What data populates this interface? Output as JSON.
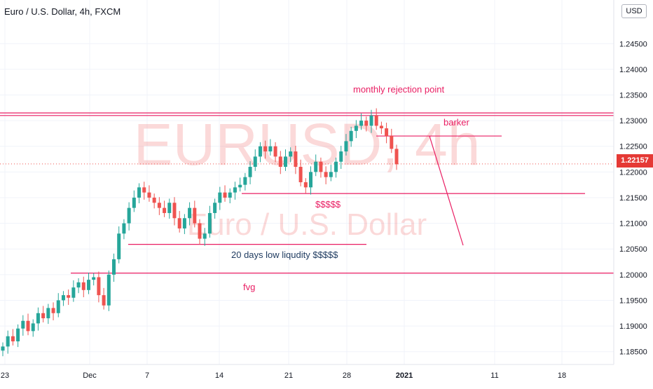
{
  "header": {
    "title": "Euro / U.S. Dollar, 4h, FXCM",
    "currency": "USD"
  },
  "price_badge": {
    "value": "1.22157",
    "color": "#e53935"
  },
  "watermark": {
    "symbol": "EURUSD, 4h",
    "name": "Euro / U.S. Dollar"
  },
  "colors": {
    "up": "#26a69a",
    "down": "#ef5350",
    "annotation": "#e91e63",
    "blue_text": "#1e3a5f",
    "axis_text": "#131722"
  },
  "annotations": {
    "monthly": "monthly rejection point",
    "barker": "barker",
    "dollars": "$$$$$",
    "liquidity": "20 days low liqudity $$$$$",
    "fvg": "fvg"
  },
  "chart_data": {
    "type": "candlestick",
    "title": "Euro / U.S. Dollar, 4h, FXCM",
    "ylim": [
      1.1825,
      1.2535
    ],
    "y_ticks": [
      "1.18500",
      "1.19000",
      "1.19500",
      "1.20000",
      "1.20500",
      "1.21000",
      "1.21500",
      "1.22000",
      "1.22500",
      "1.23000",
      "1.23500",
      "1.24000",
      "1.24500"
    ],
    "x_ticks": [
      "23",
      "Dec",
      "7",
      "14",
      "21",
      "28",
      "2021",
      "11",
      "18"
    ],
    "last_price": 1.22157,
    "horizontal_levels": [
      {
        "price": 1.2315,
        "label": ""
      },
      {
        "price": 1.231,
        "label": ""
      },
      {
        "price": 1.227,
        "label": "barker"
      },
      {
        "price": 1.2158,
        "label": "$$$$$"
      },
      {
        "price": 1.2059,
        "label": "20 days low liqudity $$$$$"
      },
      {
        "price": 1.2003,
        "label": "fvg"
      }
    ],
    "approx_closes": [
      1.186,
      1.188,
      1.187,
      1.1895,
      1.191,
      1.189,
      1.1905,
      1.1925,
      1.1915,
      1.1935,
      1.1925,
      1.195,
      1.196,
      1.1955,
      1.1975,
      1.1985,
      1.197,
      1.199,
      1.1995,
      1.196,
      1.194,
      1.2,
      1.203,
      1.208,
      1.21,
      1.213,
      1.215,
      1.217,
      1.216,
      1.215,
      1.214,
      1.213,
      1.212,
      1.214,
      1.211,
      1.209,
      1.211,
      1.213,
      1.21,
      1.207,
      1.208,
      1.212,
      1.214,
      1.216,
      1.215,
      1.216,
      1.217,
      1.2175,
      1.219,
      1.221,
      1.223,
      1.225,
      1.224,
      1.225,
      1.223,
      1.221,
      1.223,
      1.224,
      1.221,
      1.218,
      1.217,
      1.22,
      1.222,
      1.22,
      1.219,
      1.22,
      1.222,
      1.224,
      1.226,
      1.228,
      1.229,
      1.23,
      1.229,
      1.231,
      1.229,
      1.2285,
      1.227,
      1.2245,
      1.2215
    ]
  }
}
